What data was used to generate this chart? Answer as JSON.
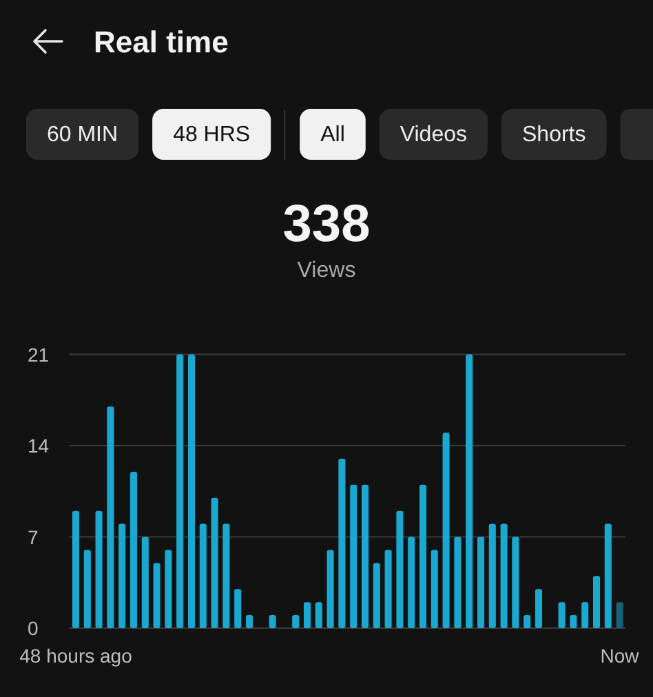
{
  "chart_data": {
    "type": "bar",
    "title": "Real time",
    "annotations": [
      "60 MIN",
      "48 HRS",
      "All",
      "Videos",
      "Shorts",
      "338",
      "Views"
    ],
    "categories": [
      "48 hours ago",
      null,
      null,
      null,
      null,
      null,
      null,
      null,
      null,
      null,
      null,
      null,
      null,
      null,
      null,
      null,
      null,
      null,
      null,
      null,
      null,
      null,
      null,
      null,
      null,
      null,
      null,
      null,
      null,
      null,
      null,
      null,
      null,
      null,
      null,
      null,
      null,
      null,
      null,
      null,
      null,
      null,
      null,
      null,
      null,
      null,
      null,
      "Now"
    ],
    "values": [
      9,
      6,
      9,
      17,
      8,
      12,
      7,
      5,
      6,
      21,
      21,
      8,
      10,
      8,
      3,
      1,
      0,
      1,
      0,
      1,
      2,
      2,
      6,
      13,
      11,
      11,
      5,
      6,
      9,
      7,
      11,
      6,
      15,
      7,
      21,
      7,
      8,
      8,
      7,
      1,
      3,
      0,
      2,
      1,
      2,
      4,
      8,
      2
    ],
    "colors": [
      "#1ba8d0",
      "#1ba8d0",
      "#1ba8d0",
      "#1ba8d0",
      "#1ba8d0",
      "#1ba8d0",
      "#1ba8d0",
      "#1ba8d0",
      "#1ba8d0",
      "#1ba8d0",
      "#1ba8d0",
      "#1ba8d0",
      "#1ba8d0",
      "#1ba8d0",
      "#1ba8d0",
      "#1ba8d0",
      "#1ba8d0",
      "#1ba8d0",
      "#1ba8d0",
      "#1ba8d0",
      "#1ba8d0",
      "#1ba8d0",
      "#1ba8d0",
      "#1ba8d0",
      "#1ba8d0",
      "#1ba8d0",
      "#1ba8d0",
      "#1ba8d0",
      "#1ba8d0",
      "#1ba8d0",
      "#1ba8d0",
      "#1ba8d0",
      "#1ba8d0",
      "#1ba8d0",
      "#1ba8d0",
      "#1ba8d0",
      "#1ba8d0",
      "#1ba8d0",
      "#1ba8d0",
      "#1ba8d0",
      "#1ba8d0",
      "#1ba8d0",
      "#1ba8d0",
      "#1ba8d0",
      "#1ba8d0",
      "#1ba8d0",
      "#1ba8d0",
      "#176179"
    ],
    "ylim": [
      0,
      21
    ],
    "yticks": [
      0,
      7,
      14,
      21
    ],
    "grid": "y"
  }
}
